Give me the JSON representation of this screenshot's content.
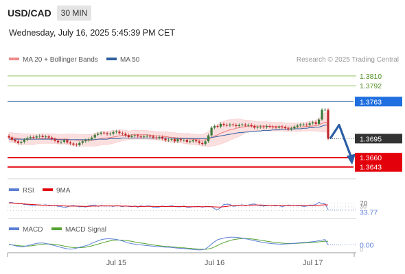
{
  "header": {
    "symbol": "USD/CAD",
    "timeframe": "30 MIN",
    "datetime": "Wednesday, July 16, 2025 5:45:39 PM CET"
  },
  "colors": {
    "bollinger": "#f08b8b",
    "ma50": "#2e5e9e",
    "resistance": "#8ec45e",
    "pivot_line": "#2f5f9f",
    "pivot_label": "#1f6fe0",
    "support": "#e3000b",
    "current": "#333333",
    "candle_up": "#3a7a3a",
    "candle_down": "#c0282a",
    "rsi": "#5b7fd6",
    "rsi_ma": "#e3000b",
    "macd": "#5b7fd6",
    "macd_signal": "#52a32f",
    "arrow": "#2c5ea4"
  },
  "chart_data": [
    {
      "type": "candlestick",
      "legend": [
        {
          "name": "MA 20 + Bollinger Bands",
          "color": "#f08b8b"
        },
        {
          "name": "MA 50",
          "color": "#2e5e9e"
        }
      ],
      "watermark": "Research © 2025 Trading Central",
      "y_range": [
        1.3625,
        1.383
      ],
      "levels": [
        {
          "value": 1.381,
          "label": "1.3810",
          "kind": "resistance"
        },
        {
          "value": 1.3792,
          "label": "1.3792",
          "kind": "resistance"
        },
        {
          "value": 1.3763,
          "label": "1.3763",
          "kind": "pivot"
        },
        {
          "value": 1.3695,
          "label": "1.3695",
          "kind": "current"
        },
        {
          "value": 1.366,
          "label": "1.3660",
          "kind": "support"
        },
        {
          "value": 1.3643,
          "label": "1.3643",
          "kind": "support"
        }
      ],
      "close_series": [
        1.3697,
        1.3693,
        1.369,
        1.3687,
        1.3689,
        1.3693,
        1.3696,
        1.3698,
        1.3697,
        1.3699,
        1.37,
        1.3698,
        1.3699,
        1.3697,
        1.3694,
        1.3691,
        1.3688,
        1.3689,
        1.3692,
        1.3688,
        1.3686,
        1.3684,
        1.3683,
        1.3687,
        1.369,
        1.3692,
        1.3694,
        1.3697,
        1.3702,
        1.3704,
        1.3706,
        1.3705,
        1.3703,
        1.3704,
        1.3707,
        1.3708,
        1.3705,
        1.3704,
        1.3701,
        1.3698,
        1.37,
        1.3701,
        1.3699,
        1.3698,
        1.3699,
        1.37,
        1.3699,
        1.3697,
        1.3696,
        1.3698,
        1.3695,
        1.3692,
        1.3693,
        1.3694,
        1.369,
        1.3694,
        1.3692,
        1.3693,
        1.3689,
        1.369,
        1.3692,
        1.369,
        1.3687,
        1.3685,
        1.369,
        1.3701,
        1.3715,
        1.3718,
        1.3717,
        1.3722,
        1.372,
        1.3719,
        1.3721,
        1.372,
        1.3718,
        1.372,
        1.3721,
        1.3719,
        1.372,
        1.3718,
        1.3715,
        1.3716,
        1.3717,
        1.3716,
        1.3718,
        1.3717,
        1.3716,
        1.3715,
        1.3717,
        1.3716,
        1.3714,
        1.3712,
        1.3714,
        1.3717,
        1.3719,
        1.3721,
        1.3721,
        1.372,
        1.3723,
        1.3725,
        1.3722,
        1.373,
        1.3748,
        1.3748,
        1.3695
      ],
      "ma20": [
        1.3697,
        1.3697,
        1.3696,
        1.3695,
        1.3694,
        1.3694,
        1.3694,
        1.3694,
        1.3694,
        1.3694,
        1.3695,
        1.3695,
        1.3695,
        1.3695,
        1.3695,
        1.3695,
        1.3694,
        1.3694,
        1.3694,
        1.3694,
        1.3693,
        1.3693,
        1.3692,
        1.3692,
        1.3692,
        1.3692,
        1.3692,
        1.3692,
        1.3693,
        1.3694,
        1.3695,
        1.3696,
        1.3696,
        1.3697,
        1.3698,
        1.3699,
        1.37,
        1.3701,
        1.3701,
        1.3701,
        1.3702,
        1.3702,
        1.3702,
        1.3702,
        1.3702,
        1.3702,
        1.3701,
        1.3701,
        1.37,
        1.37,
        1.3699,
        1.3699,
        1.3698,
        1.3697,
        1.3697,
        1.3696,
        1.3696,
        1.3695,
        1.3695,
        1.3694,
        1.3694,
        1.3693,
        1.3693,
        1.3692,
        1.3693,
        1.3694,
        1.3697,
        1.37,
        1.3702,
        1.3705,
        1.3707,
        1.3709,
        1.3711,
        1.3712,
        1.3714,
        1.3715,
        1.3716,
        1.3717,
        1.3718,
        1.3718,
        1.3718,
        1.3718,
        1.3718,
        1.3718,
        1.3718,
        1.3717,
        1.3717,
        1.3717,
        1.3717,
        1.3717,
        1.3716,
        1.3716,
        1.3716,
        1.3716,
        1.3716,
        1.3716,
        1.3717,
        1.3717,
        1.3718,
        1.3718,
        1.3719,
        1.372,
        1.3723,
        1.3725,
        1.3724
      ],
      "ma50": [
        1.3694,
        1.3694,
        1.3694,
        1.3694,
        1.3694,
        1.3694,
        1.3694,
        1.3694,
        1.3694,
        1.3694,
        1.3694,
        1.3694,
        1.3694,
        1.3694,
        1.3694,
        1.3694,
        1.3693,
        1.3693,
        1.3693,
        1.3693,
        1.3693,
        1.3693,
        1.3693,
        1.3693,
        1.3693,
        1.3693,
        1.3693,
        1.3693,
        1.3693,
        1.3694,
        1.3694,
        1.3694,
        1.3694,
        1.3695,
        1.3695,
        1.3695,
        1.3695,
        1.3696,
        1.3696,
        1.3696,
        1.3696,
        1.3696,
        1.3696,
        1.3696,
        1.3696,
        1.3696,
        1.3696,
        1.3696,
        1.3696,
        1.3696,
        1.3696,
        1.3696,
        1.3696,
        1.3696,
        1.3695,
        1.3695,
        1.3695,
        1.3695,
        1.3695,
        1.3695,
        1.3695,
        1.3695,
        1.3695,
        1.3695,
        1.3695,
        1.3696,
        1.3697,
        1.3698,
        1.3699,
        1.37,
        1.3701,
        1.3702,
        1.3703,
        1.3704,
        1.3705,
        1.3706,
        1.3706,
        1.3707,
        1.3707,
        1.3708,
        1.3708,
        1.3709,
        1.3709,
        1.371,
        1.371,
        1.371,
        1.3711,
        1.3711,
        1.3711,
        1.3712,
        1.3712,
        1.3712,
        1.3712,
        1.3713,
        1.3713,
        1.3713,
        1.3714,
        1.3714,
        1.3715,
        1.3715,
        1.3716,
        1.3716,
        1.3718,
        1.372,
        1.372
      ],
      "bb_half_width": [
        0.0009,
        0.0009,
        0.0009,
        0.001,
        0.001,
        0.001,
        0.001,
        0.001,
        0.001,
        0.0009,
        0.0009,
        0.0009,
        0.0009,
        0.0009,
        0.0009,
        0.0009,
        0.0009,
        0.0009,
        0.0009,
        0.001,
        0.001,
        0.0011,
        0.0011,
        0.0011,
        0.0011,
        0.0011,
        0.0011,
        0.0011,
        0.0012,
        0.0012,
        0.0012,
        0.0012,
        0.0012,
        0.0012,
        0.0012,
        0.0011,
        0.0011,
        0.001,
        0.0009,
        0.0008,
        0.0008,
        0.0008,
        0.0008,
        0.0008,
        0.0008,
        0.0008,
        0.0008,
        0.0008,
        0.0008,
        0.0008,
        0.0008,
        0.0009,
        0.0009,
        0.0009,
        0.0009,
        0.0009,
        0.0009,
        0.0009,
        0.001,
        0.001,
        0.001,
        0.001,
        0.001,
        0.0011,
        0.0012,
        0.0014,
        0.0016,
        0.0018,
        0.0019,
        0.002,
        0.002,
        0.002,
        0.0019,
        0.0018,
        0.0017,
        0.0016,
        0.0014,
        0.0012,
        0.0011,
        0.001,
        0.0009,
        0.0008,
        0.0008,
        0.0008,
        0.0008,
        0.0008,
        0.0008,
        0.0008,
        0.0008,
        0.0008,
        0.0008,
        0.0008,
        0.0008,
        0.0008,
        0.0008,
        0.0008,
        0.0008,
        0.0008,
        0.0009,
        0.0009,
        0.001,
        0.0012,
        0.0016,
        0.0018,
        0.0018
      ],
      "forecast_arrow": {
        "from": 1.3695,
        "peak": 1.372,
        "to": 1.3652
      }
    },
    {
      "type": "line",
      "legend": [
        {
          "name": "RSI",
          "color": "#5b7fd6"
        },
        {
          "name": "9MA",
          "color": "#e3000b"
        }
      ],
      "y_range": [
        0,
        100
      ],
      "guide_levels": [
        70,
        50,
        30
      ],
      "level_labels": [
        "70",
        "30"
      ],
      "last_value_label": "33.77",
      "rsi": [
        72,
        73,
        69,
        66,
        67,
        62,
        63,
        58,
        57,
        60,
        60,
        59,
        61,
        56,
        57,
        59,
        53,
        52,
        45,
        50,
        55,
        57,
        54,
        50,
        52,
        49,
        56,
        59,
        60,
        53,
        57,
        54,
        55,
        55,
        52,
        56,
        55,
        51,
        55,
        53,
        51,
        55,
        48,
        56,
        51,
        55,
        55,
        48,
        47,
        49,
        55,
        51,
        53,
        56,
        52,
        50,
        50,
        55,
        47,
        47,
        51,
        51,
        53,
        48,
        52,
        52,
        51,
        40,
        35,
        46,
        62,
        64,
        63,
        53,
        55,
        58,
        61,
        56,
        60,
        63,
        65,
        59,
        56,
        54,
        57,
        59,
        57,
        55,
        58,
        50,
        56,
        60,
        58,
        58,
        55,
        56,
        52,
        54,
        60,
        59,
        62,
        74,
        66,
        68,
        33.77
      ],
      "rsi_ma": [
        71,
        70,
        69,
        67,
        66,
        65,
        64,
        63,
        62,
        61,
        60,
        59,
        59,
        59,
        58,
        58,
        57,
        56,
        55,
        54,
        54,
        54,
        54,
        54,
        53,
        53,
        53,
        54,
        54,
        54,
        55,
        55,
        55,
        55,
        55,
        55,
        55,
        54,
        54,
        54,
        53,
        53,
        53,
        52,
        53,
        53,
        53,
        53,
        52,
        52,
        52,
        52,
        52,
        52,
        52,
        52,
        52,
        52,
        51,
        51,
        51,
        51,
        51,
        51,
        51,
        51,
        51,
        50,
        49,
        49,
        51,
        53,
        55,
        56,
        57,
        58,
        59,
        59,
        59,
        59,
        60,
        60,
        60,
        59,
        59,
        59,
        58,
        58,
        57,
        57,
        57,
        57,
        57,
        57,
        57,
        57,
        57,
        56,
        57,
        57,
        58,
        59,
        60,
        61,
        60
      ]
    },
    {
      "type": "line",
      "legend": [
        {
          "name": "MACD",
          "color": "#5b7fd6"
        },
        {
          "name": "MACD Signal",
          "color": "#52a32f"
        }
      ],
      "y_range": [
        -0.0004,
        0.0007
      ],
      "zero_label": "0",
      "last_value_label": "0.00",
      "macd": [
        3e-05,
        0.0,
        -5e-05,
        -0.0001,
        -0.00012,
        -0.0001,
        -5e-05,
        0.0,
        5e-05,
        0.0001,
        0.00012,
        0.00012,
        0.0001,
        5e-05,
        0.0,
        -5e-05,
        -0.0001,
        -0.00015,
        -0.0002,
        -0.00024,
        -0.00026,
        -0.00024,
        -0.0002,
        -0.00015,
        -0.0001,
        -5e-05,
        0.0,
        0.0001,
        0.00018,
        0.00025,
        0.00032,
        0.00036,
        0.00038,
        0.00038,
        0.00036,
        0.00034,
        0.0003,
        0.00025,
        0.00018,
        0.00012,
        8e-05,
        5e-05,
        2e-05,
        0.0,
        -2e-05,
        -4e-05,
        -6e-05,
        -8e-05,
        -0.0001,
        -0.0001,
        -0.00012,
        -0.00014,
        -0.00014,
        -0.00016,
        -0.00018,
        -0.0002,
        -0.00021,
        -0.00022,
        -0.00024,
        -0.00026,
        -0.00028,
        -0.0003,
        -0.00031,
        -0.0003,
        -0.00025,
        -0.00012,
        5e-05,
        0.0002,
        0.00032,
        0.00038,
        0.00042,
        0.00046,
        0.00048,
        0.00048,
        0.00047,
        0.00045,
        0.00042,
        0.00038,
        0.00035,
        0.0003,
        0.00026,
        0.00022,
        0.00018,
        0.00015,
        0.00012,
        0.0001,
        8e-05,
        6e-05,
        5e-05,
        5e-05,
        6e-05,
        7e-05,
        8e-05,
        0.0001,
        0.00012,
        0.00014,
        0.00015,
        0.00016,
        0.00018,
        0.0002,
        0.00022,
        0.00026,
        0.0003,
        0.00033,
        0.0
      ],
      "signal": [
        0.0,
        0.0,
        -2e-05,
        -4e-05,
        -6e-05,
        -7e-05,
        -7e-05,
        -6e-05,
        -4e-05,
        -1e-05,
        2e-05,
        4e-05,
        6e-05,
        6e-05,
        5e-05,
        3e-05,
        0.0,
        -3e-05,
        -7e-05,
        -0.0001,
        -0.00014,
        -0.00016,
        -0.00017,
        -0.00017,
        -0.00016,
        -0.00014,
        -0.0001,
        -6e-05,
        0.0,
        5e-05,
        0.0001,
        0.00016,
        0.00021,
        0.00025,
        0.00028,
        0.0003,
        0.0003,
        0.0003,
        0.00028,
        0.00025,
        0.00022,
        0.00018,
        0.00015,
        0.00012,
        9e-05,
        6e-05,
        3e-05,
        0.0,
        -3e-05,
        -5e-05,
        -7e-05,
        -9e-05,
        -0.0001,
        -0.00012,
        -0.00013,
        -0.00015,
        -0.00017,
        -0.00018,
        -0.0002,
        -0.00021,
        -0.00023,
        -0.00024,
        -0.00026,
        -0.00027,
        -0.00027,
        -0.00025,
        -0.0002,
        -0.00012,
        -3e-05,
        6e-05,
        0.00014,
        0.00021,
        0.00027,
        0.00032,
        0.00035,
        0.00038,
        0.00039,
        0.00039,
        0.00038,
        0.00037,
        0.00035,
        0.00032,
        0.00029,
        0.00026,
        0.00023,
        0.0002,
        0.00017,
        0.00015,
        0.00013,
        0.00011,
        0.0001,
        9e-05,
        9e-05,
        9e-05,
        0.0001,
        0.00011,
        0.00012,
        0.00013,
        0.00014,
        0.00015,
        0.00017,
        0.00019,
        0.00021,
        0.00023,
        0.00022
      ],
      "x_ticks": [
        {
          "index": 35,
          "label": "Jul 15"
        },
        {
          "index": 67,
          "label": "Jul 16"
        },
        {
          "index": 99,
          "label": "Jul 17"
        }
      ]
    }
  ]
}
